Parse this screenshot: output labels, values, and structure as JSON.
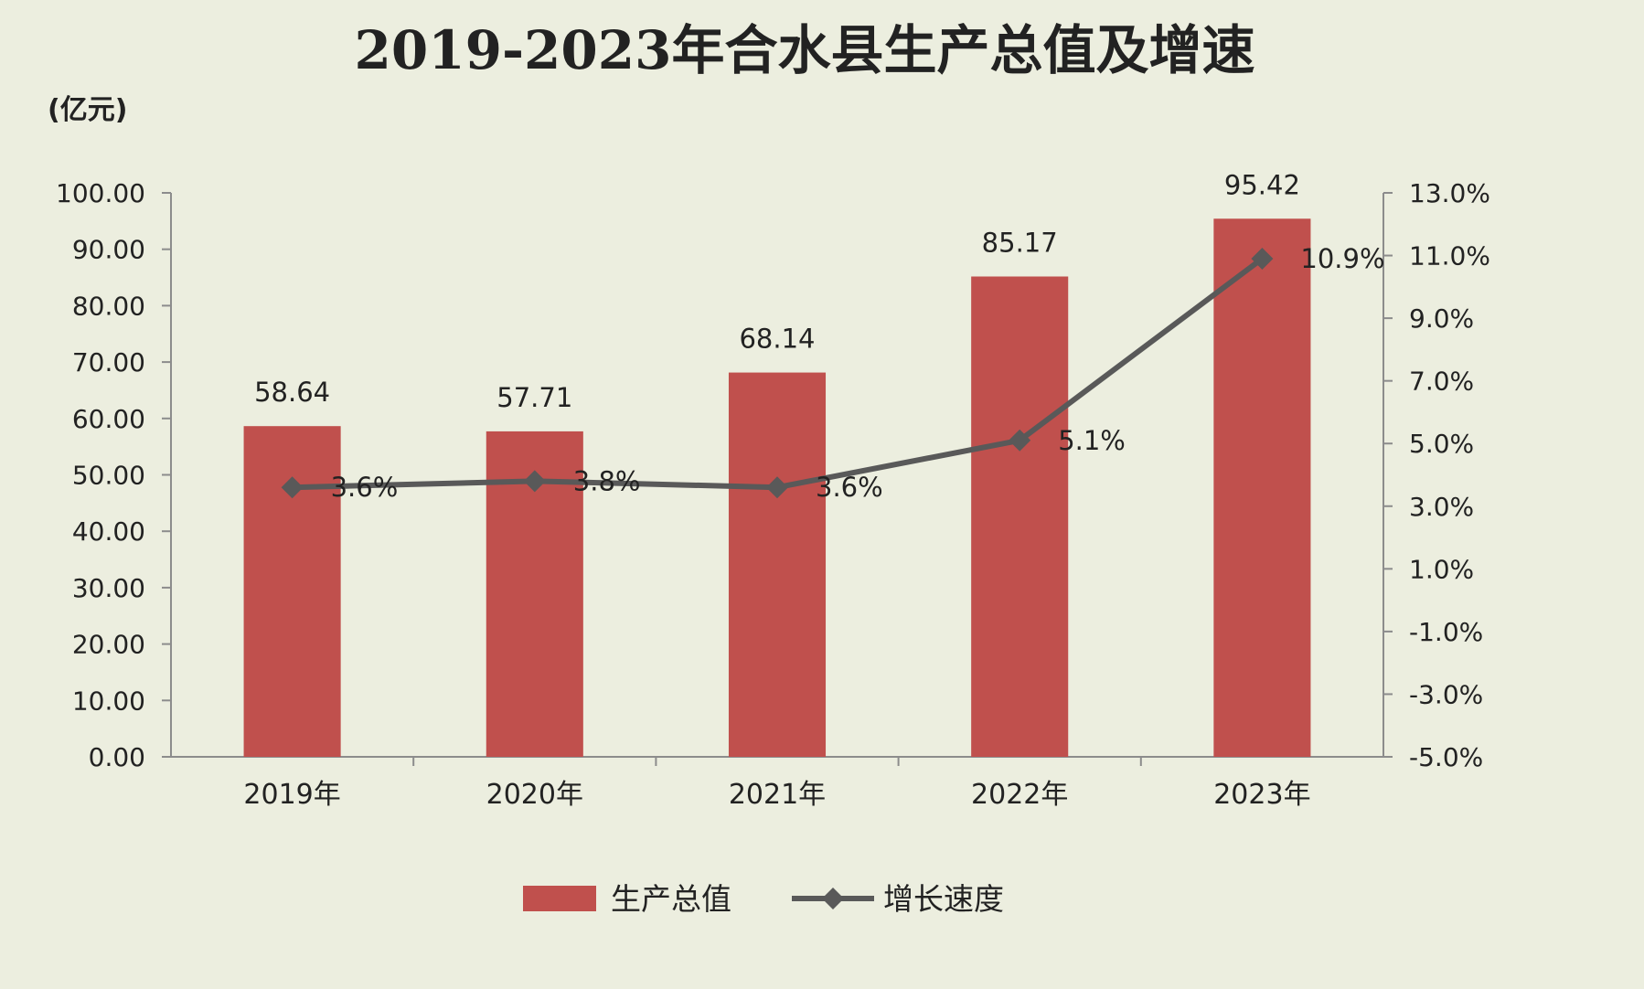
{
  "chart_data": {
    "type": "bar+line",
    "title": "2019-2023年合水县生产总值及增速",
    "y_left_unit": "(亿元)",
    "categories": [
      "2019年",
      "2020年",
      "2021年",
      "2022年",
      "2023年"
    ],
    "series": [
      {
        "name": "生产总值",
        "kind": "bar",
        "axis": "left",
        "values": [
          58.64,
          57.71,
          68.14,
          85.17,
          95.42
        ],
        "labels": [
          "58.64",
          "57.71",
          "68.14",
          "85.17",
          "95.42"
        ],
        "color": "#c0504d"
      },
      {
        "name": "增长速度",
        "kind": "line",
        "axis": "right",
        "values": [
          3.6,
          3.8,
          3.6,
          5.1,
          10.9
        ],
        "labels": [
          "3.6%",
          "3.8%",
          "3.6%",
          "5.1%",
          "10.9%"
        ],
        "color": "#595959"
      }
    ],
    "y_left": {
      "min": 0,
      "max": 100,
      "ticks": [
        "0.00",
        "10.00",
        "20.00",
        "30.00",
        "40.00",
        "50.00",
        "60.00",
        "70.00",
        "80.00",
        "90.00",
        "100.00"
      ]
    },
    "y_right": {
      "min": -5,
      "max": 13,
      "ticks": [
        "-5.0%",
        "-3.0%",
        "-1.0%",
        "1.0%",
        "3.0%",
        "5.0%",
        "7.0%",
        "9.0%",
        "11.0%",
        "13.0%"
      ]
    },
    "grid": false,
    "legend_position": "bottom",
    "background": "#eceedf"
  }
}
